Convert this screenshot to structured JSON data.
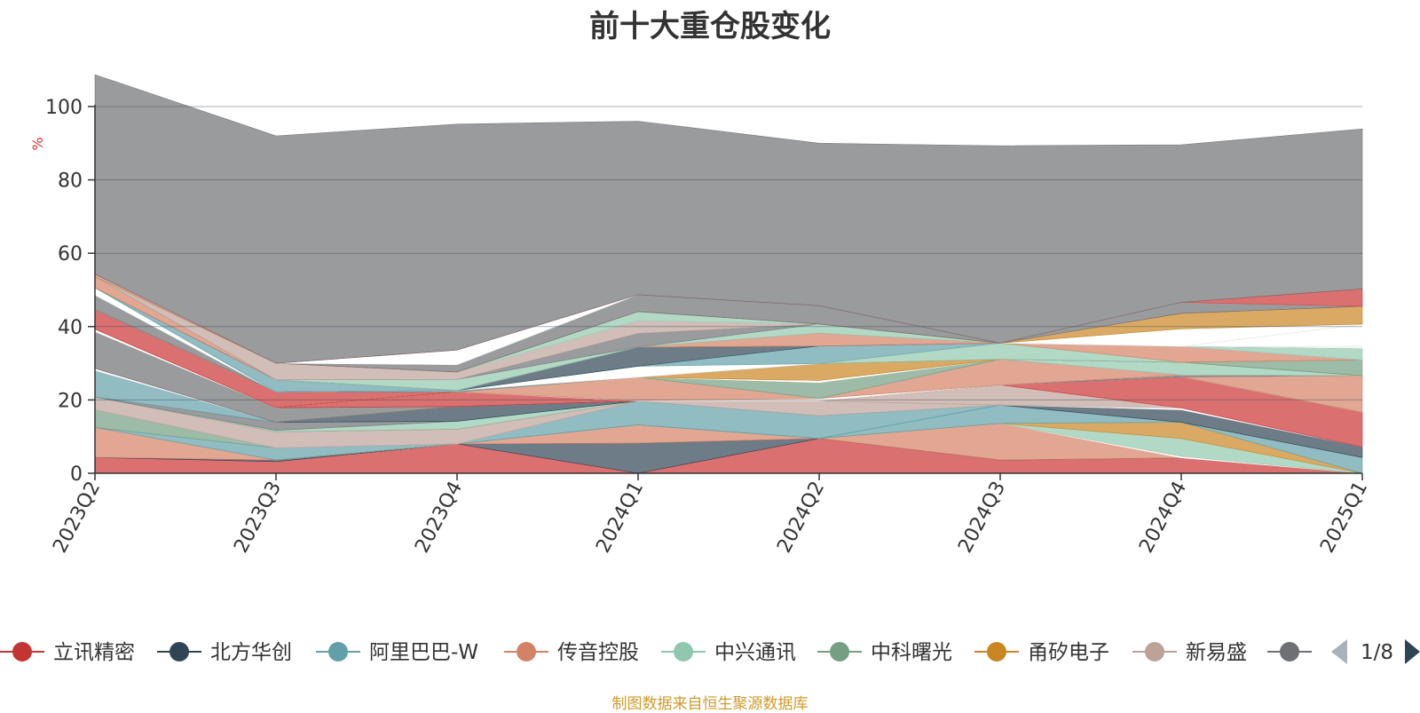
{
  "title": "前十大重仓股变化",
  "source_note": "制图数据来自恒生聚源数据库",
  "chart_data": {
    "type": "area",
    "stacked": true,
    "unit": "%",
    "ylim": [
      0,
      100
    ],
    "yticks": [
      0,
      20,
      40,
      60,
      80,
      100
    ],
    "grid": true,
    "categories": [
      "2023Q2",
      "2023Q3",
      "2023Q4",
      "2024Q1",
      "2024Q2",
      "2024Q3",
      "2024Q4",
      "2025Q1"
    ],
    "layers": [
      {
        "color": "#cc3333",
        "values": [
          4.3,
          3.2,
          8.0,
          0,
          9.5,
          3.6,
          4.2,
          0
        ]
      },
      {
        "color": "#2f4554",
        "values": [
          0,
          0.4,
          0,
          8.2,
          0,
          0,
          0,
          0
        ]
      },
      {
        "color": "#d48265",
        "values": [
          8.2,
          0,
          0,
          5.0,
          0,
          10.0,
          0,
          0
        ]
      },
      {
        "color": "#ffffff",
        "values": [
          0,
          0,
          0,
          0,
          0,
          0,
          0.4,
          0
        ]
      },
      {
        "color": "#91c7ae",
        "values": [
          0,
          0,
          0,
          0,
          0,
          0,
          4.9,
          0
        ]
      },
      {
        "color": "#ca8622",
        "values": [
          0,
          0,
          0,
          0,
          0,
          0,
          4.4,
          0
        ]
      },
      {
        "color": "#61a0a8",
        "values": [
          0,
          3.3,
          0,
          0,
          0,
          5.0,
          0,
          4.3
        ]
      },
      {
        "color": "#749f83",
        "values": [
          4.8,
          0,
          0,
          0,
          0,
          0,
          0,
          0
        ]
      },
      {
        "color": "#61a0a8",
        "values": [
          0,
          0,
          0,
          6.5,
          6.2,
          0,
          0,
          0
        ]
      },
      {
        "color": "#bda29a",
        "values": [
          0,
          0,
          0,
          0,
          4.0,
          0,
          0,
          0
        ]
      },
      {
        "color": "#2f4554",
        "values": [
          0,
          0,
          0,
          0,
          0,
          0,
          3.4,
          2.9
        ]
      },
      {
        "color": "#ffffff",
        "values": [
          0,
          0,
          0,
          0,
          0,
          0,
          0.5,
          0
        ]
      },
      {
        "color": "#bda29a",
        "values": [
          3.5,
          4.4,
          4.0,
          0,
          0,
          5.5,
          0,
          0
        ]
      },
      {
        "color": "#cc3333",
        "values": [
          0,
          0,
          0,
          0,
          0,
          0,
          8.5,
          9.4
        ]
      },
      {
        "color": "#91c7ae",
        "values": [
          0,
          0.4,
          2.2,
          0,
          0,
          0,
          0,
          0
        ]
      },
      {
        "color": "#6e7074",
        "values": [
          0,
          2.2,
          0,
          0,
          0,
          0,
          0,
          0
        ]
      },
      {
        "color": "#61a0a8",
        "values": [
          7.2,
          0,
          0,
          0,
          0,
          0,
          0,
          0
        ]
      },
      {
        "color": "#2f4554",
        "values": [
          0,
          0,
          4.0,
          0,
          0,
          0,
          0,
          0
        ]
      },
      {
        "color": "#ffffff",
        "values": [
          0.6,
          0,
          0,
          0,
          0,
          0,
          0,
          0
        ]
      },
      {
        "color": "#d48265",
        "values": [
          0,
          0,
          0,
          0,
          0,
          0,
          0,
          10.0
        ]
      },
      {
        "color": "#6e7074",
        "values": [
          10.0,
          4.0,
          0,
          0,
          0,
          0,
          0,
          0
        ]
      },
      {
        "color": "#cc3333",
        "values": [
          0,
          0,
          4.0,
          0,
          0,
          0,
          0,
          0
        ]
      },
      {
        "color": "#ffffff",
        "values": [
          0,
          0,
          0,
          0.2,
          0.7,
          0,
          0,
          0
        ]
      },
      {
        "color": "#6e7074",
        "values": [
          0,
          0,
          0,
          0,
          0,
          0,
          0.5,
          0
        ]
      },
      {
        "color": "#ffffff",
        "values": [
          0.7,
          0,
          0,
          0,
          0,
          0,
          0,
          0
        ]
      },
      {
        "color": "#d48265",
        "values": [
          0,
          0,
          0,
          6.3,
          0,
          7.0,
          0,
          0
        ]
      },
      {
        "color": "#91c7ae",
        "values": [
          0,
          0,
          0,
          0,
          0,
          0,
          3.5,
          0
        ]
      },
      {
        "color": "#749f83",
        "values": [
          0,
          0,
          0,
          0,
          4.3,
          0,
          0,
          0
        ]
      },
      {
        "color": "#ca8622",
        "values": [
          0,
          0,
          0,
          0,
          0,
          0,
          0,
          0
        ]
      },
      {
        "color": "#749f83",
        "values": [
          0,
          0,
          0,
          0,
          0,
          0,
          0,
          4.3
        ]
      },
      {
        "color": "#ffffff",
        "values": [
          0,
          0,
          0,
          0,
          0.6,
          0,
          0,
          0
        ]
      },
      {
        "color": "#cc3333",
        "values": [
          5.3,
          4.3,
          0,
          0,
          0,
          0,
          0,
          0
        ]
      },
      {
        "color": "#61a0a8",
        "values": [
          0,
          0,
          0.4,
          0,
          0,
          0,
          0,
          0
        ]
      },
      {
        "color": "#ffffff",
        "values": [
          0,
          0,
          0,
          0,
          0,
          0,
          0,
          0
        ]
      },
      {
        "color": "#ca8622",
        "values": [
          0,
          0,
          0,
          0,
          4.6,
          0,
          0,
          0
        ]
      },
      {
        "color": "#6e7074",
        "values": [
          0,
          0,
          0,
          0,
          0,
          0,
          0,
          0
        ]
      },
      {
        "color": "#91c7ae",
        "values": [
          0,
          0,
          0,
          0,
          0,
          4.4,
          0,
          0
        ]
      },
      {
        "color": "#d48265",
        "values": [
          0,
          0,
          0,
          0,
          0,
          0,
          4.3,
          0
        ]
      },
      {
        "color": "#749f83",
        "values": [
          0,
          0,
          0,
          0,
          0,
          0,
          0,
          0
        ]
      },
      {
        "color": "#ffffff",
        "values": [
          0,
          0,
          0,
          0,
          0,
          0,
          0,
          0
        ]
      },
      {
        "color": "#6e7074",
        "values": [
          4.0,
          0,
          0,
          0,
          0,
          0,
          0,
          0
        ]
      },
      {
        "color": "#ffffff",
        "values": [
          0,
          0,
          0,
          3.0,
          0,
          0,
          0,
          0
        ]
      },
      {
        "color": "#91c7ae",
        "values": [
          0,
          0,
          0,
          0,
          0,
          0,
          0,
          3.2
        ]
      },
      {
        "color": "#ffffff",
        "values": [
          2.0,
          0,
          0,
          0,
          0,
          0,
          0,
          0
        ]
      },
      {
        "color": "#61a0a8",
        "values": [
          0,
          0,
          0,
          0,
          4.8,
          0,
          0,
          0
        ]
      },
      {
        "color": "#2f4554",
        "values": [
          0,
          0,
          0,
          5.2,
          0,
          0,
          0,
          0
        ]
      },
      {
        "color": "#ffffff",
        "values": [
          0,
          0,
          0,
          0,
          0,
          0,
          0,
          0.5
        ]
      },
      {
        "color": "#61a0a8",
        "values": [
          0,
          3.3,
          0,
          0,
          0,
          0,
          0,
          0
        ]
      },
      {
        "color": "#2f4554",
        "values": [
          0,
          0,
          0,
          0,
          0,
          0,
          0,
          0
        ]
      },
      {
        "color": "#d48265",
        "values": [
          3.0,
          0,
          0,
          0,
          3.5,
          0,
          0,
          0
        ]
      },
      {
        "color": "#91c7ae",
        "values": [
          0,
          0,
          3.0,
          0,
          2.5,
          0,
          0,
          0
        ]
      },
      {
        "color": "#ffffff",
        "values": [
          0,
          0,
          0,
          0,
          0,
          0,
          0,
          6.1
        ]
      },
      {
        "color": "#6e7074",
        "values": [
          0,
          0,
          0,
          3.7,
          0,
          0,
          0,
          0
        ]
      },
      {
        "color": "#bda29a",
        "values": [
          0,
          4.5,
          2.0,
          3.5,
          0,
          0,
          0,
          0
        ]
      },
      {
        "color": "#ffffff",
        "values": [
          0,
          0,
          0,
          0,
          0,
          0,
          4.8,
          0
        ]
      },
      {
        "color": "#91c7ae",
        "values": [
          0,
          0,
          0,
          2.5,
          0,
          0,
          0,
          0
        ]
      },
      {
        "color": "#ca8622",
        "values": [
          0,
          0,
          0,
          0,
          0,
          0,
          4.2,
          4.8
        ]
      },
      {
        "color": "#d48265",
        "values": [
          0.7,
          0,
          0,
          0,
          0,
          0,
          0,
          0
        ]
      },
      {
        "color": "#6e7074",
        "values": [
          0,
          0,
          2.0,
          4.6,
          5.0,
          0,
          3.0,
          0
        ]
      },
      {
        "color": "#ffffff",
        "values": [
          0,
          0,
          4.0,
          0,
          0,
          0,
          0,
          0
        ]
      },
      {
        "color": "#cc3333",
        "values": [
          0,
          0,
          0,
          0,
          0,
          0,
          0,
          4.8
        ]
      },
      {
        "color": "#6e7074",
        "values": [
          54.4,
          62.0,
          61.6,
          47.3,
          44.3,
          53.8,
          43.0,
          43.6
        ]
      }
    ]
  },
  "legend": {
    "items": [
      {
        "label": "立讯精密",
        "color": "#c23531"
      },
      {
        "label": "北方华创",
        "color": "#2f4554"
      },
      {
        "label": "阿里巴巴-W",
        "color": "#61a0a8"
      },
      {
        "label": "传音控股",
        "color": "#d48265"
      },
      {
        "label": "中兴通讯",
        "color": "#91c7ae"
      },
      {
        "label": "中科曙光",
        "color": "#749f83"
      },
      {
        "label": "甬矽电子",
        "color": "#ca8622"
      },
      {
        "label": "新易盛",
        "color": "#bda29a"
      },
      {
        "label": "",
        "color": "#6e7074"
      }
    ],
    "page": "1/8",
    "prev_icon": "triangle-left-icon",
    "next_icon": "triangle-right-icon"
  }
}
